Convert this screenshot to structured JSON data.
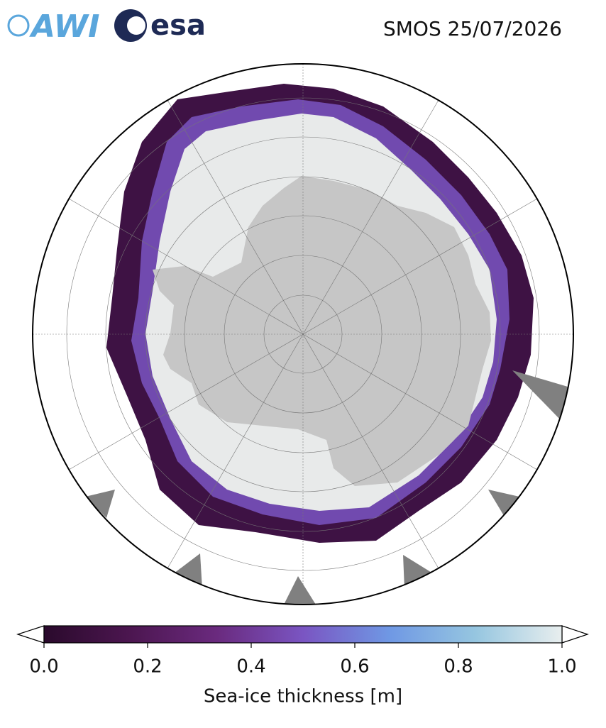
{
  "header": {
    "logos": {
      "awi": "AWI",
      "esa": "esa"
    },
    "title": "SMOS 25/07/2026"
  },
  "colorbar": {
    "label": "Sea-ice thickness [m]",
    "lim": [
      0,
      1
    ],
    "ticks": [
      {
        "value": 0,
        "label": "0.0"
      },
      {
        "value": 0.2,
        "label": "0.2"
      },
      {
        "value": 0.4,
        "label": "0.4"
      },
      {
        "value": 0.6,
        "label": "0.6"
      },
      {
        "value": 0.8,
        "label": "0.8"
      },
      {
        "value": 1,
        "label": "1.0"
      }
    ],
    "colors": [
      "#2a0a2c",
      "#4c1650",
      "#6a2a7e",
      "#7a55c2",
      "#6f98e4",
      "#96c6e0",
      "#e8eeee"
    ]
  }
}
